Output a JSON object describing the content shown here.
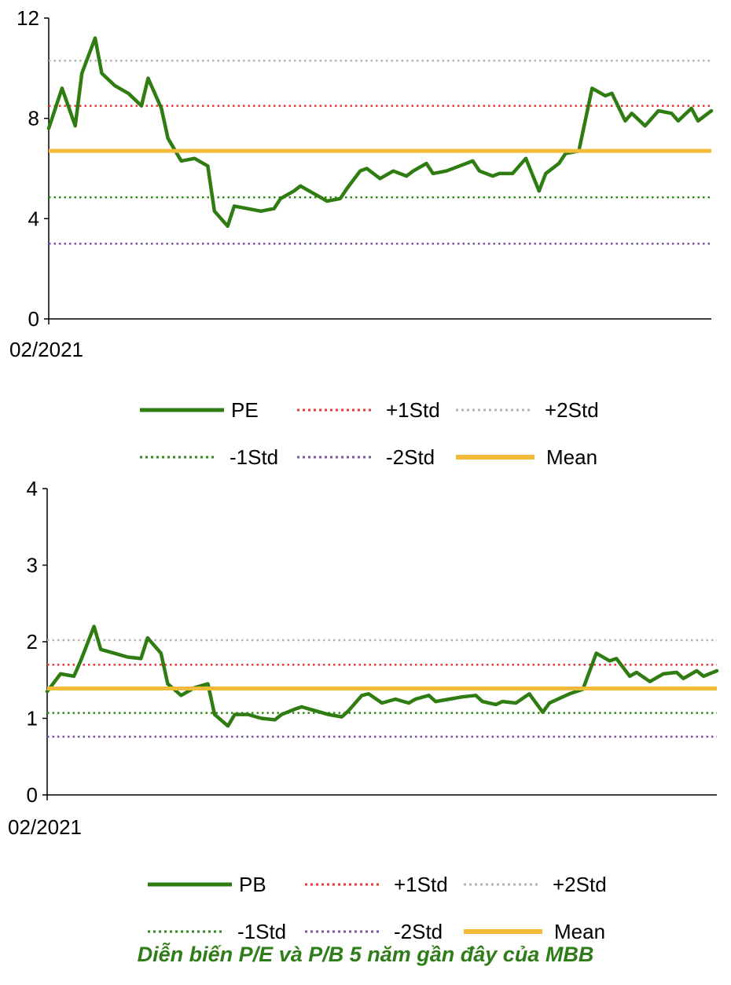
{
  "caption": "Diễn biến P/E và P/B 5 năm gần đây của MBB",
  "colors": {
    "series": "#2f7d12",
    "plus1": "#e83838",
    "plus2": "#b3b3b3",
    "minus1": "#2e8b1a",
    "minus2": "#7a52a8",
    "mean": "#f2bc3a"
  },
  "chart_data": [
    {
      "type": "line",
      "ylim": [
        0,
        12
      ],
      "yticks": [
        "0",
        "4",
        "8",
        "12"
      ],
      "x_start_label": "02/2021",
      "series_name": "PE",
      "reference_lines": {
        "plus1": 8.5,
        "plus2": 10.3,
        "minus1": 4.85,
        "minus2": 3.0,
        "mean": 6.7
      },
      "legend": {
        "series": "PE",
        "plus1": "+1Std",
        "plus2": "+2Std",
        "minus1": "-1Std",
        "minus2": "-2Std",
        "mean": "Mean"
      },
      "x": [
        0.0,
        0.02,
        0.04,
        0.05,
        0.07,
        0.08,
        0.1,
        0.12,
        0.14,
        0.15,
        0.17,
        0.18,
        0.2,
        0.22,
        0.24,
        0.25,
        0.27,
        0.28,
        0.3,
        0.32,
        0.34,
        0.35,
        0.37,
        0.38,
        0.4,
        0.42,
        0.44,
        0.45,
        0.47,
        0.48,
        0.5,
        0.52,
        0.54,
        0.55,
        0.57,
        0.58,
        0.6,
        0.62,
        0.64,
        0.65,
        0.67,
        0.68,
        0.7,
        0.72,
        0.74,
        0.75,
        0.77,
        0.78,
        0.8,
        0.82,
        0.84,
        0.85,
        0.87,
        0.88,
        0.9,
        0.92,
        0.94,
        0.95,
        0.97,
        0.98,
        1.0
      ],
      "values": [
        7.6,
        9.2,
        7.7,
        9.8,
        11.2,
        9.8,
        9.3,
        9.0,
        8.5,
        9.6,
        8.4,
        7.2,
        6.3,
        6.4,
        6.1,
        4.3,
        3.7,
        4.5,
        4.4,
        4.3,
        4.4,
        4.8,
        5.1,
        5.3,
        5.0,
        4.7,
        4.8,
        5.2,
        5.9,
        6.0,
        5.6,
        5.9,
        5.7,
        5.9,
        6.2,
        5.8,
        5.9,
        6.1,
        6.3,
        5.9,
        5.7,
        5.8,
        5.8,
        6.4,
        5.1,
        5.8,
        6.2,
        6.6,
        6.7,
        9.2,
        8.9,
        9.0,
        7.9,
        8.2,
        7.7,
        8.3,
        8.2,
        7.9,
        8.4,
        7.9,
        8.3
      ]
    },
    {
      "type": "line",
      "ylim": [
        0,
        4
      ],
      "yticks": [
        "0",
        "1",
        "2",
        "3",
        "4"
      ],
      "x_start_label": "02/2021",
      "series_name": "PB",
      "reference_lines": {
        "plus1": 1.7,
        "plus2": 2.02,
        "minus1": 1.07,
        "minus2": 0.76,
        "mean": 1.39
      },
      "legend": {
        "series": "PB",
        "plus1": "+1Std",
        "plus2": "+2Std",
        "minus1": "-1Std",
        "minus2": "-2Std",
        "mean": "Mean"
      },
      "x": [
        0.0,
        0.02,
        0.04,
        0.05,
        0.07,
        0.08,
        0.1,
        0.12,
        0.14,
        0.15,
        0.17,
        0.18,
        0.2,
        0.22,
        0.24,
        0.25,
        0.27,
        0.28,
        0.3,
        0.32,
        0.34,
        0.35,
        0.37,
        0.38,
        0.4,
        0.42,
        0.44,
        0.45,
        0.47,
        0.48,
        0.5,
        0.52,
        0.54,
        0.55,
        0.57,
        0.58,
        0.6,
        0.62,
        0.64,
        0.65,
        0.67,
        0.68,
        0.7,
        0.72,
        0.74,
        0.75,
        0.77,
        0.78,
        0.8,
        0.82,
        0.84,
        0.85,
        0.87,
        0.88,
        0.9,
        0.92,
        0.94,
        0.95,
        0.97,
        0.98,
        1.0
      ],
      "values": [
        1.35,
        1.58,
        1.55,
        1.75,
        2.2,
        1.9,
        1.85,
        1.8,
        1.78,
        2.05,
        1.85,
        1.45,
        1.3,
        1.4,
        1.45,
        1.05,
        0.9,
        1.05,
        1.05,
        1.0,
        0.98,
        1.05,
        1.12,
        1.15,
        1.1,
        1.05,
        1.02,
        1.1,
        1.3,
        1.32,
        1.2,
        1.25,
        1.2,
        1.25,
        1.3,
        1.22,
        1.25,
        1.28,
        1.3,
        1.22,
        1.18,
        1.22,
        1.2,
        1.32,
        1.08,
        1.2,
        1.28,
        1.32,
        1.38,
        1.85,
        1.75,
        1.78,
        1.55,
        1.6,
        1.48,
        1.58,
        1.6,
        1.52,
        1.62,
        1.55,
        1.62
      ]
    }
  ]
}
